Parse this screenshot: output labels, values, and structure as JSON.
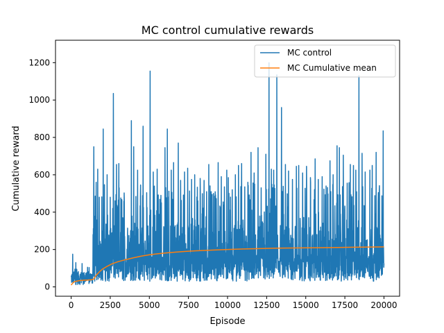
{
  "chart_data": {
    "type": "line",
    "title": "MC control cumulative rewards",
    "xlabel": "Episode",
    "ylabel": "Cumulative reward",
    "xlim": [
      -1000,
      21000
    ],
    "ylim": [
      -50,
      1320
    ],
    "xticks": [
      0,
      2500,
      5000,
      7500,
      10000,
      12500,
      15000,
      17500,
      20000
    ],
    "yticks": [
      0,
      200,
      400,
      600,
      800,
      1000,
      1200
    ],
    "grid": false,
    "legend_position": "top-right",
    "series": [
      {
        "name": "MC control",
        "color": "#1f77b4",
        "style": "noisy-episode-rewards",
        "episodes": 20000,
        "peaks": [
          [
            100,
            175
          ],
          [
            300,
            130
          ],
          [
            700,
            125
          ],
          [
            1450,
            750
          ],
          [
            1600,
            560
          ],
          [
            1700,
            630
          ],
          [
            1800,
            480
          ],
          [
            2050,
            845
          ],
          [
            2300,
            600
          ],
          [
            2500,
            480
          ],
          [
            2700,
            1035
          ],
          [
            2900,
            655
          ],
          [
            3050,
            660
          ],
          [
            3300,
            370
          ],
          [
            3850,
            890
          ],
          [
            4000,
            750
          ],
          [
            4250,
            625
          ],
          [
            4600,
            860
          ],
          [
            4850,
            425
          ],
          [
            5050,
            1155
          ],
          [
            5250,
            615
          ],
          [
            5500,
            630
          ],
          [
            5700,
            445
          ],
          [
            6000,
            745
          ],
          [
            6150,
            845
          ],
          [
            6400,
            625
          ],
          [
            6550,
            665
          ],
          [
            6850,
            770
          ],
          [
            7000,
            570
          ],
          [
            7250,
            615
          ],
          [
            7450,
            635
          ],
          [
            7700,
            575
          ],
          [
            7900,
            600
          ],
          [
            8100,
            460
          ],
          [
            8250,
            580
          ],
          [
            8500,
            570
          ],
          [
            8800,
            655
          ],
          [
            9100,
            500
          ],
          [
            9400,
            665
          ],
          [
            9600,
            590
          ],
          [
            9800,
            535
          ],
          [
            9950,
            625
          ],
          [
            10050,
            585
          ],
          [
            10300,
            520
          ],
          [
            10500,
            600
          ],
          [
            10700,
            650
          ],
          [
            10900,
            660
          ],
          [
            11100,
            535
          ],
          [
            11300,
            560
          ],
          [
            11500,
            720
          ],
          [
            11700,
            610
          ],
          [
            11950,
            745
          ],
          [
            12150,
            530
          ],
          [
            12450,
            710
          ],
          [
            12650,
            1200
          ],
          [
            12800,
            630
          ],
          [
            12950,
            625
          ],
          [
            13150,
            1135
          ],
          [
            13450,
            960
          ],
          [
            13700,
            655
          ],
          [
            13900,
            620
          ],
          [
            14150,
            575
          ],
          [
            14400,
            645
          ],
          [
            14550,
            650
          ],
          [
            14800,
            610
          ],
          [
            15050,
            645
          ],
          [
            15300,
            585
          ],
          [
            15600,
            685
          ],
          [
            15800,
            575
          ],
          [
            16050,
            590
          ],
          [
            16300,
            540
          ],
          [
            16550,
            675
          ],
          [
            16750,
            600
          ],
          [
            17000,
            755
          ],
          [
            17150,
            745
          ],
          [
            17400,
            705
          ],
          [
            17650,
            555
          ],
          [
            17850,
            655
          ],
          [
            18050,
            650
          ],
          [
            18200,
            625
          ],
          [
            18400,
            1130
          ],
          [
            18600,
            715
          ],
          [
            18800,
            615
          ],
          [
            19100,
            625
          ],
          [
            19250,
            650
          ],
          [
            19500,
            720
          ],
          [
            19700,
            515
          ],
          [
            19950,
            835
          ]
        ]
      },
      {
        "name": "MC Cumulative mean",
        "color": "#ff7f0e",
        "points": [
          [
            0,
            10
          ],
          [
            150,
            25
          ],
          [
            300,
            30
          ],
          [
            500,
            33
          ],
          [
            800,
            36
          ],
          [
            1100,
            37
          ],
          [
            1300,
            38
          ],
          [
            1450,
            42
          ],
          [
            1600,
            62
          ],
          [
            1800,
            80
          ],
          [
            2000,
            95
          ],
          [
            2300,
            110
          ],
          [
            2600,
            123
          ],
          [
            3000,
            135
          ],
          [
            3500,
            146
          ],
          [
            4000,
            156
          ],
          [
            4500,
            165
          ],
          [
            5000,
            172
          ],
          [
            5500,
            177
          ],
          [
            6000,
            181
          ],
          [
            6500,
            185
          ],
          [
            7000,
            188
          ],
          [
            7500,
            191
          ],
          [
            8000,
            193
          ],
          [
            9000,
            197
          ],
          [
            10000,
            200
          ],
          [
            11000,
            203
          ],
          [
            12000,
            205
          ],
          [
            13000,
            207
          ],
          [
            14000,
            208
          ],
          [
            15000,
            209
          ],
          [
            16000,
            210
          ],
          [
            17000,
            211
          ],
          [
            18000,
            212
          ],
          [
            19000,
            213
          ],
          [
            20000,
            214
          ]
        ]
      }
    ]
  }
}
